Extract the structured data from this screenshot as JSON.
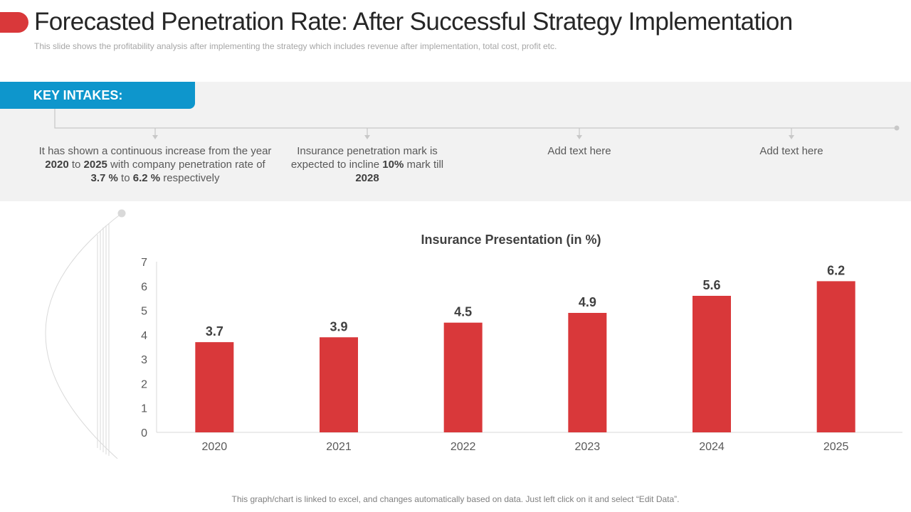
{
  "header": {
    "title": "Forecasted Penetration Rate: After Successful Strategy Implementation",
    "subtitle": "This slide shows the profitability analysis after implementing the strategy which includes revenue  after implementation,  total cost, profit etc."
  },
  "key_intakes": {
    "label": "KEY INTAKES:",
    "items": [
      {
        "parts": [
          "It has shown a continuous  increase from the year ",
          "2020",
          " to ",
          "2025",
          " with company penetration rate of ",
          "3.7 %",
          " to ",
          "6.2 %",
          " respectively"
        ]
      },
      {
        "parts": [
          "Insurance  penetration mark is expected to incline ",
          "10%",
          " mark till ",
          "2028"
        ]
      },
      {
        "parts": [
          "Add text here"
        ]
      },
      {
        "parts": [
          "Add text here"
        ]
      }
    ]
  },
  "chart_data": {
    "type": "bar",
    "title": "Insurance Presentation (in %)",
    "categories": [
      "2020",
      "2021",
      "2022",
      "2023",
      "2024",
      "2025"
    ],
    "values": [
      3.7,
      3.9,
      4.5,
      4.9,
      5.6,
      6.2
    ],
    "value_labels": [
      "3.7",
      "3.9",
      "4.5",
      "4.9",
      "5.6",
      "6.2"
    ],
    "yticks": [
      "0",
      "1",
      "2",
      "3",
      "4",
      "5",
      "6",
      "7"
    ],
    "ylim": [
      0,
      7
    ],
    "xlabel": "",
    "ylabel": "",
    "grid": false,
    "legend": "none",
    "bar_color": "#d9383a"
  },
  "footer": "This graph/chart is linked to excel, and changes automatically based on data. Just left click on it and select “Edit Data”."
}
